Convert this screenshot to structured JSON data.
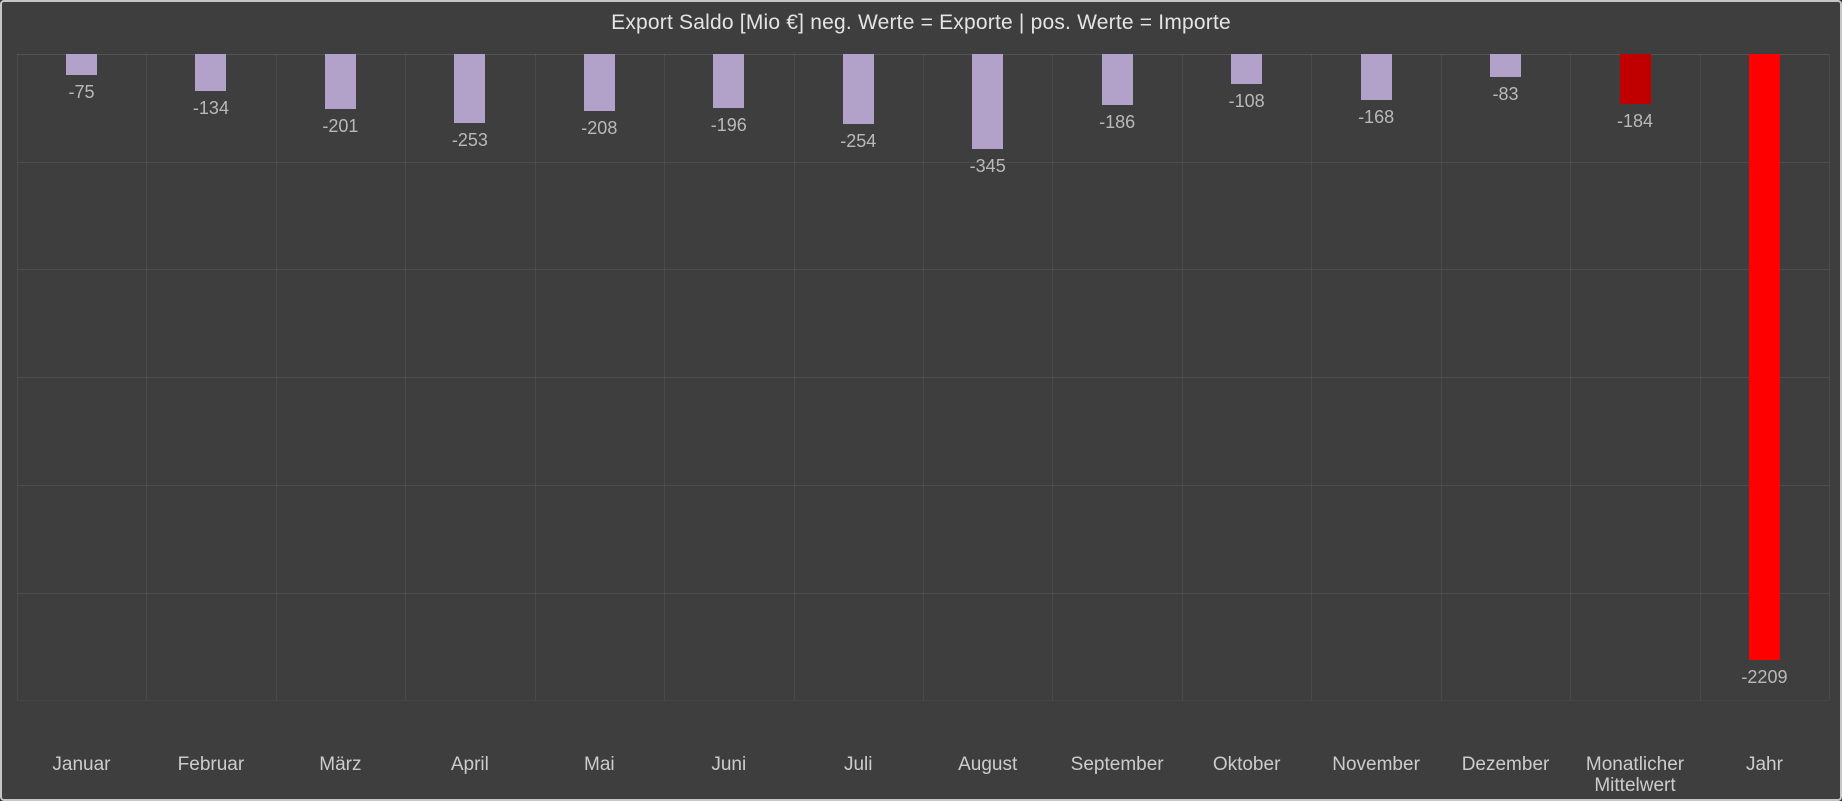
{
  "window": {
    "background": "#3e3e3e",
    "border_color": "#c6c6c6"
  },
  "chart_data": {
    "type": "bar",
    "title": "Export Saldo [Mio €] neg. Werte = Exporte | pos. Werte = Importe",
    "categories": [
      "Januar",
      "Februar",
      "März",
      "April",
      "Mai",
      "Juni",
      "Juli",
      "August",
      "September",
      "Oktober",
      "November",
      "Dezember",
      "Monatlicher Mittelwert",
      "Jahr"
    ],
    "values": [
      -75,
      -134,
      -201,
      -253,
      -208,
      -196,
      -254,
      -345,
      -186,
      -108,
      -168,
      -83,
      -184,
      -2209
    ],
    "value_labels": [
      "-75",
      "-134",
      "-201",
      "-253",
      "-208",
      "-196",
      "-254",
      "-345",
      "-186",
      "-108",
      "-168",
      "-83",
      "-184",
      "-2209"
    ],
    "point_roles": [
      "month",
      "month",
      "month",
      "month",
      "month",
      "month",
      "month",
      "month",
      "month",
      "month",
      "month",
      "month",
      "average",
      "total"
    ],
    "colors": {
      "month": "#b2a2c9",
      "average": "#c00000",
      "total": "#ff0000"
    },
    "unit": "Mio €",
    "legend": "none",
    "axis": {
      "orientation": "bars-hang-from-zero-line-at-top",
      "ylim": [
        -2356,
        0
      ],
      "grid": "on",
      "grid_rows": 6,
      "grid_cols": 14,
      "y_tick_labels_visible": false
    },
    "text_colors": {
      "title": "#e4e4e4",
      "value_label": "#b9b9b9",
      "axis_label": "#cccccc"
    }
  }
}
